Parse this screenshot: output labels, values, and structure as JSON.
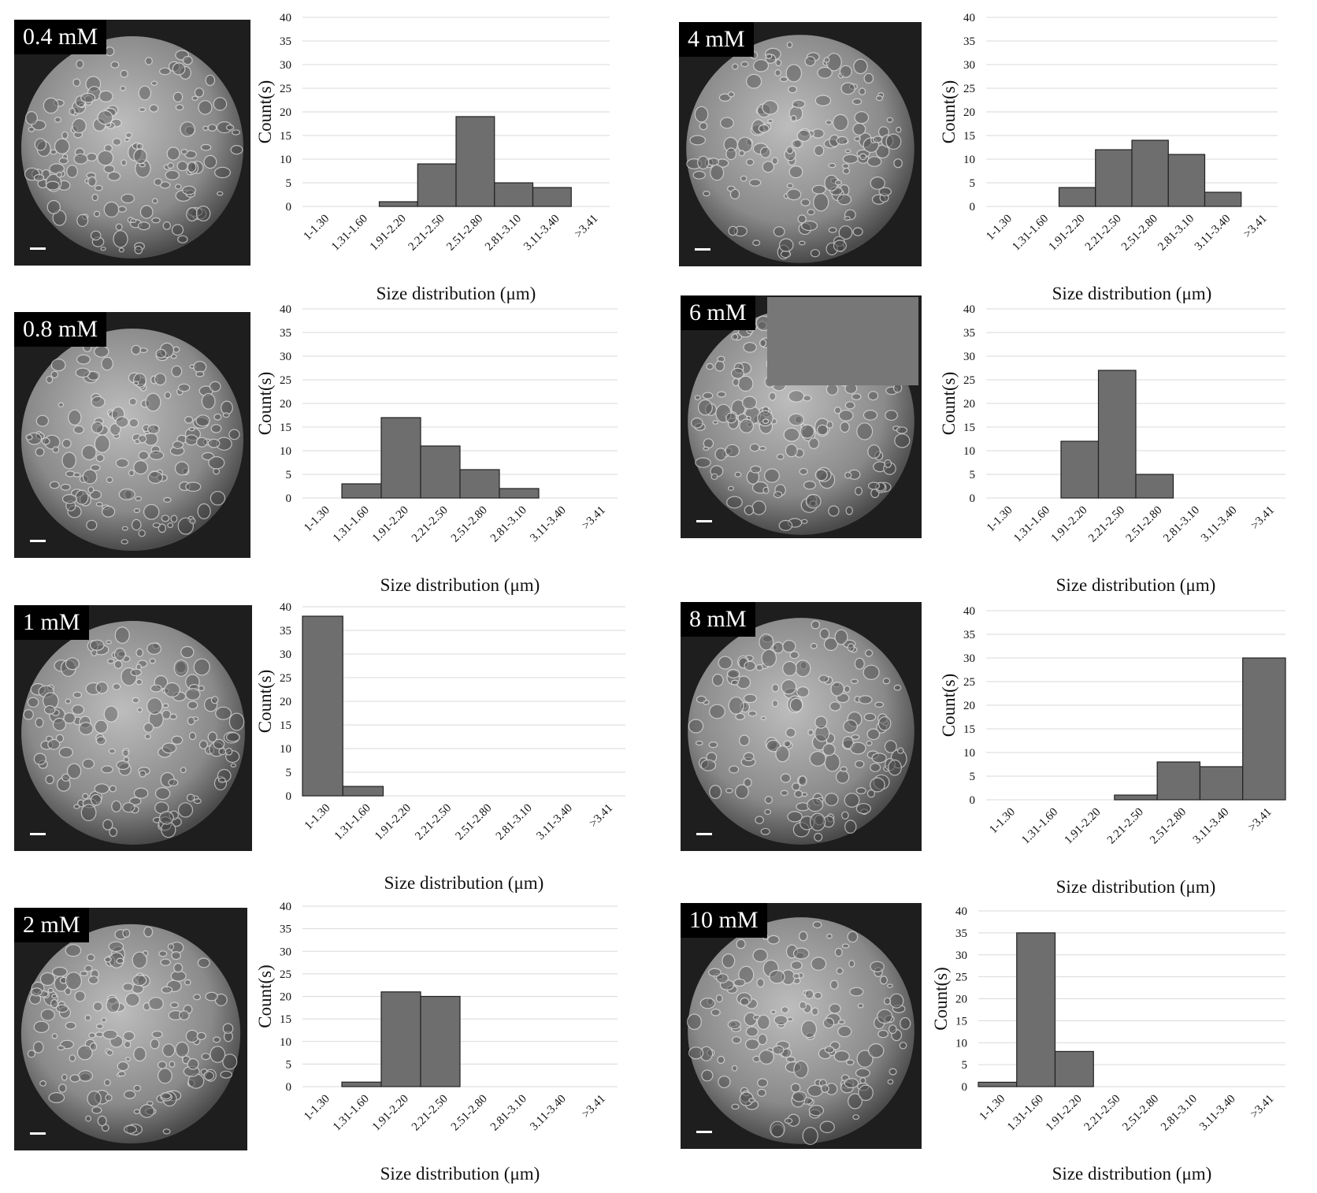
{
  "common": {
    "categories": [
      "1-1.30",
      "1.31-1.60",
      "1.91-2.20",
      "2.21-2.50",
      "2.51-2.80",
      "2.81-3.10",
      "3.11-3.40",
      ">3.41"
    ],
    "y_ticks": [
      0,
      5,
      10,
      15,
      20,
      25,
      30,
      35,
      40
    ],
    "ylabel": "Count(s)",
    "xlabel": "Size distribution (μm)",
    "bar_color": "#6e6e6e",
    "grid_color": "#d9d9d9"
  },
  "panels": [
    {
      "label": "0.4 mM"
    },
    {
      "label": "4 mM"
    },
    {
      "label": "0.8 mM"
    },
    {
      "label": "6 mM"
    },
    {
      "label": "1 mM"
    },
    {
      "label": "8 mM"
    },
    {
      "label": "2 mM"
    },
    {
      "label": "10 mM"
    }
  ],
  "chart_data": [
    {
      "type": "bar",
      "panel": "0.4 mM",
      "categories": [
        "1-1.30",
        "1.31-1.60",
        "1.91-2.20",
        "2.21-2.50",
        "2.51-2.80",
        "2.81-3.10",
        "3.11-3.40",
        ">3.41"
      ],
      "values": [
        0,
        0,
        1,
        9,
        19,
        5,
        4,
        0
      ],
      "xlabel": "Size distribution (μm)",
      "ylabel": "Count(s)",
      "ylim": [
        0,
        40
      ],
      "grid": true
    },
    {
      "type": "bar",
      "panel": "4 mM",
      "categories": [
        "1-1.30",
        "1.31-1.60",
        "1.91-2.20",
        "2.21-2.50",
        "2.51-2.80",
        "2.81-3.10",
        "3.11-3.40",
        ">3.41"
      ],
      "values": [
        0,
        0,
        4,
        12,
        14,
        11,
        3,
        0
      ],
      "xlabel": "Size distribution (μm)",
      "ylabel": "Count(s)",
      "ylim": [
        0,
        40
      ],
      "grid": true
    },
    {
      "type": "bar",
      "panel": "0.8 mM",
      "categories": [
        "1-1.30",
        "1.31-1.60",
        "1.91-2.20",
        "2.21-2.50",
        "2.51-2.80",
        "2.81-3.10",
        "3.11-3.40",
        ">3.41"
      ],
      "values": [
        0,
        3,
        17,
        11,
        6,
        2,
        0,
        0
      ],
      "xlabel": "Size distribution (μm)",
      "ylabel": "Count(s)",
      "ylim": [
        0,
        40
      ],
      "grid": true
    },
    {
      "type": "bar",
      "panel": "6 mM",
      "categories": [
        "1-1.30",
        "1.31-1.60",
        "1.91-2.20",
        "2.21-2.50",
        "2.51-2.80",
        "2.81-3.10",
        "3.11-3.40",
        ">3.41"
      ],
      "values": [
        0,
        0,
        12,
        27,
        5,
        0,
        0,
        0
      ],
      "xlabel": "Size distribution (μm)",
      "ylabel": "Count(s)",
      "ylim": [
        0,
        40
      ],
      "grid": true
    },
    {
      "type": "bar",
      "panel": "1 mM",
      "categories": [
        "1-1.30",
        "1.31-1.60",
        "1.91-2.20",
        "2.21-2.50",
        "2.51-2.80",
        "2.81-3.10",
        "3.11-3.40",
        ">3.41"
      ],
      "values": [
        38,
        2,
        0,
        0,
        0,
        0,
        0,
        0
      ],
      "xlabel": "Size distribution (μm)",
      "ylabel": "Count(s)",
      "ylim": [
        0,
        40
      ],
      "grid": true
    },
    {
      "type": "bar",
      "panel": "8 mM",
      "categories": [
        "1-1.30",
        "1.31-1.60",
        "1.91-2.20",
        "2.21-2.50",
        "2.51-2.80",
        "3.11-3.40",
        ">3.41"
      ],
      "values": [
        0,
        0,
        0,
        1,
        8,
        7,
        30
      ],
      "xlabel": "Size distribution (μm)",
      "ylabel": "Count(s)",
      "ylim": [
        0,
        40
      ],
      "grid": true
    },
    {
      "type": "bar",
      "panel": "2 mM",
      "categories": [
        "1-1.30",
        "1.31-1.60",
        "1.91-2.20",
        "2.21-2.50",
        "2.51-2.80",
        "2.81-3.10",
        "3.11-3.40",
        ">3.41"
      ],
      "values": [
        0,
        1,
        21,
        20,
        0,
        0,
        0,
        0
      ],
      "xlabel": "Size distribution (μm)",
      "ylabel": "Count(s)",
      "ylim": [
        0,
        40
      ],
      "grid": true
    },
    {
      "type": "bar",
      "panel": "10 mM",
      "categories": [
        "1-1.30",
        "1.31-1.60",
        "1.91-2.20",
        "2.21-2.50",
        "2.51-2.80",
        "2.81-3.10",
        "3.11-3.40",
        ">3.41"
      ],
      "values": [
        1,
        35,
        8,
        0,
        0,
        0,
        0,
        0
      ],
      "xlabel": "Size distribution (μm)",
      "ylabel": "Count(s)",
      "ylim": [
        0,
        40
      ],
      "grid": true
    }
  ]
}
